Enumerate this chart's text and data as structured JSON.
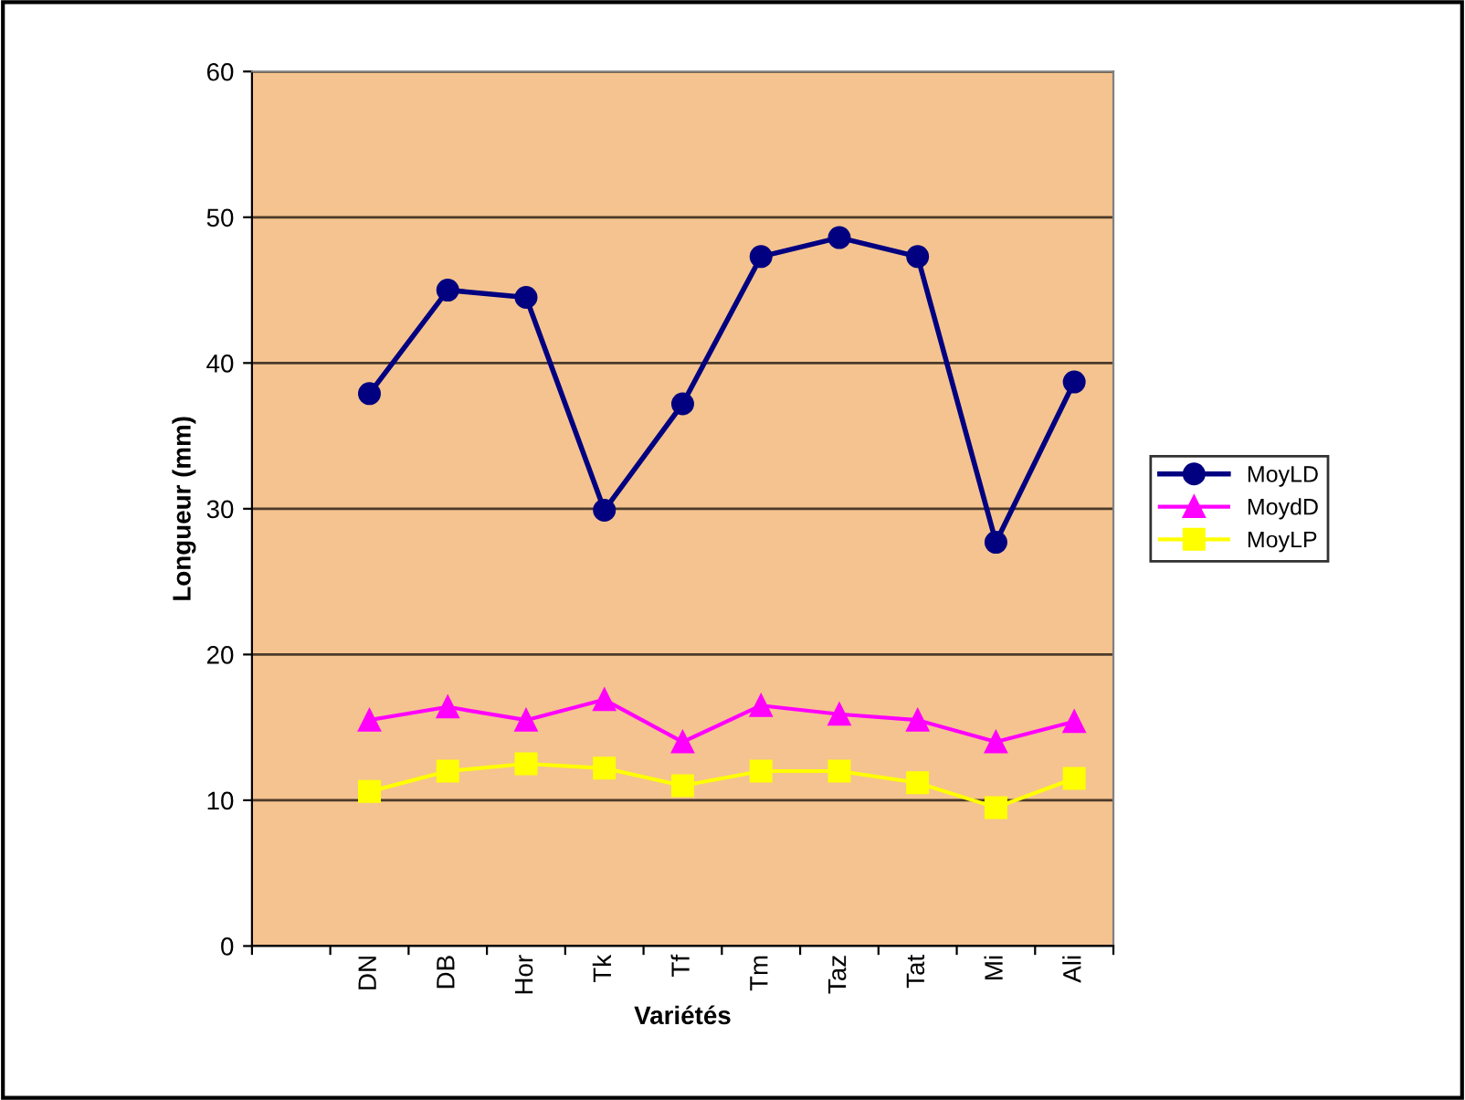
{
  "chart_data": {
    "type": "line",
    "xlabel": "Variétés",
    "ylabel": "Longueur (mm)",
    "categories": [
      null,
      "DN",
      "DB",
      "Hor",
      "Tk",
      "Tf",
      "Tm",
      "Taz",
      "Tat",
      "Mi",
      "Ali"
    ],
    "series": [
      {
        "name": "MoyLD",
        "color": "#000080",
        "marker": "circle",
        "values": [
          null,
          37.9,
          45.0,
          44.5,
          29.9,
          37.2,
          47.3,
          48.6,
          47.3,
          27.7,
          38.7
        ]
      },
      {
        "name": "MoydD",
        "color": "#ff00ff",
        "marker": "triangle",
        "values": [
          null,
          15.5,
          16.4,
          15.5,
          16.9,
          14.0,
          16.5,
          15.9,
          15.5,
          14.0,
          15.4
        ]
      },
      {
        "name": "MoyLP",
        "color": "#ffff00",
        "marker": "square",
        "values": [
          null,
          10.6,
          12.0,
          12.5,
          12.2,
          11.0,
          12.0,
          12.0,
          11.2,
          9.5,
          11.5
        ]
      }
    ],
    "ylim": [
      0,
      60
    ],
    "yticks": [
      0,
      10,
      20,
      30,
      40,
      50,
      60
    ],
    "grid": "y",
    "legend": "right",
    "line_style": "solid"
  }
}
